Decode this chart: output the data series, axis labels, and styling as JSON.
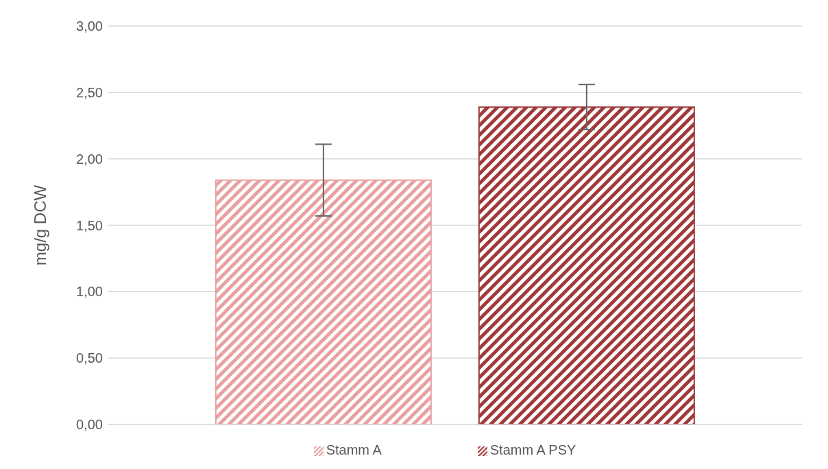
{
  "chart_data": {
    "type": "bar",
    "ylabel": "mg/g DCW",
    "categories": [
      null
    ],
    "series": [
      {
        "name": "Stamm A",
        "color": "#e8a0a0",
        "values": [
          1.84
        ],
        "errors": [
          0.27
        ]
      },
      {
        "name": "Stamm A PSY",
        "color": "#a03a3a",
        "values": [
          2.39
        ],
        "errors": [
          0.17
        ]
      }
    ],
    "ylim": [
      0,
      3
    ],
    "yticks": [
      {
        "value": 0,
        "label": "0,00"
      },
      {
        "value": 0.5,
        "label": "0,50"
      },
      {
        "value": 1,
        "label": "1,00"
      },
      {
        "value": 1.5,
        "label": "1,50"
      },
      {
        "value": 2,
        "label": "2,00"
      },
      {
        "value": 2.5,
        "label": "2,50"
      },
      {
        "value": 3,
        "label": "3,00"
      }
    ],
    "grid": "y",
    "legend": "bottom"
  }
}
